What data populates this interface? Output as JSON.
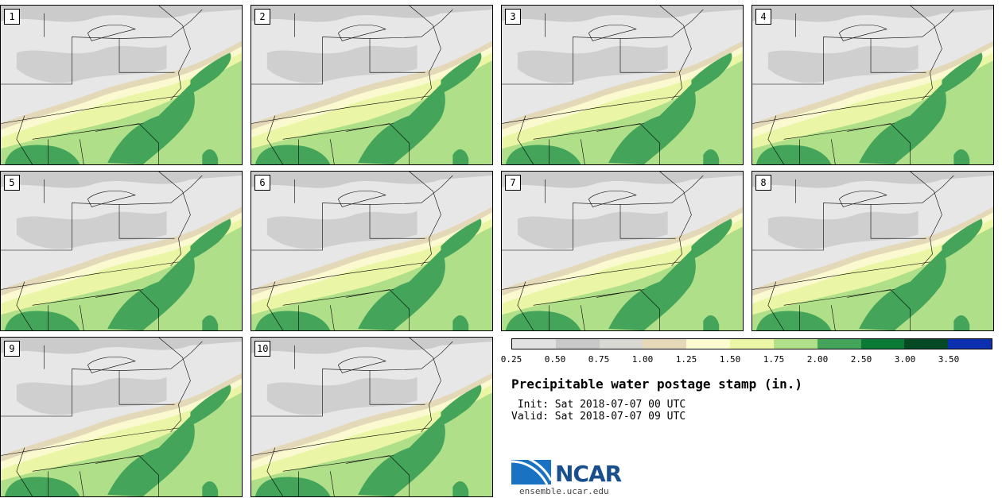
{
  "panels": [
    {
      "label": "1"
    },
    {
      "label": "2"
    },
    {
      "label": "3"
    },
    {
      "label": "4"
    },
    {
      "label": "5"
    },
    {
      "label": "6"
    },
    {
      "label": "7"
    },
    {
      "label": "8"
    },
    {
      "label": "9"
    },
    {
      "label": "10"
    }
  ],
  "legend": {
    "colors": [
      "#e2e2e2",
      "#c9c9c9",
      "#d9d9d3",
      "#e6d9b9",
      "#fdfbd0",
      "#ebf7a6",
      "#b0e08a",
      "#43a45a",
      "#0b7a36",
      "#054a25",
      "#0b2fae"
    ],
    "ticks": [
      "0.25",
      "0.50",
      "0.75",
      "1.00",
      "1.25",
      "1.50",
      "1.75",
      "2.00",
      "2.50",
      "3.00",
      "3.50"
    ]
  },
  "title": "Precipitable water postage stamp (in.)",
  "init": " Init: Sat 2018-07-07 00 UTC",
  "valid": "Valid: Sat 2018-07-07 09 UTC",
  "logo": {
    "name": "NCAR",
    "url": "ensemble.ucar.edu"
  }
}
